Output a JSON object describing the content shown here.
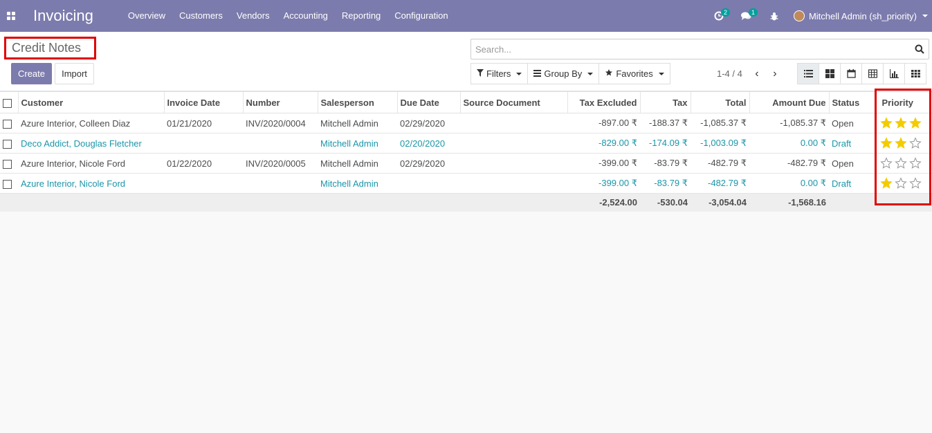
{
  "navbar": {
    "app_title": "Invoicing",
    "menu": [
      "Overview",
      "Customers",
      "Vendors",
      "Accounting",
      "Reporting",
      "Configuration"
    ],
    "activity_count": "2",
    "message_count": "1",
    "user_name": "Mitchell Admin (sh_priority)"
  },
  "control": {
    "page_title": "Credit Notes",
    "create_label": "Create",
    "import_label": "Import",
    "search_placeholder": "Search...",
    "filters_label": "Filters",
    "group_by_label": "Group By",
    "favorites_label": "Favorites",
    "pager": "1-4 / 4"
  },
  "table": {
    "columns": [
      "Customer",
      "Invoice Date",
      "Number",
      "Salesperson",
      "Due Date",
      "Source Document",
      "Tax Excluded",
      "Tax",
      "Total",
      "Amount Due",
      "Status",
      "Priority"
    ],
    "rows": [
      {
        "customer": "Azure Interior, Colleen Diaz",
        "invoice_date": "01/21/2020",
        "number": "INV/2020/0004",
        "salesperson": "Mitchell Admin",
        "due_date": "02/29/2020",
        "source": "",
        "tax_excluded": "-897.00 ₹",
        "tax": "-188.37 ₹",
        "total": "-1,085.37 ₹",
        "amount_due": "-1,085.37 ₹",
        "status": "Open",
        "priority": 3,
        "draft": false
      },
      {
        "customer": "Deco Addict, Douglas Fletcher",
        "invoice_date": "",
        "number": "",
        "salesperson": "Mitchell Admin",
        "due_date": "02/20/2020",
        "source": "",
        "tax_excluded": "-829.00 ₹",
        "tax": "-174.09 ₹",
        "total": "-1,003.09 ₹",
        "amount_due": "0.00 ₹",
        "status": "Draft",
        "priority": 2,
        "draft": true
      },
      {
        "customer": "Azure Interior, Nicole Ford",
        "invoice_date": "01/22/2020",
        "number": "INV/2020/0005",
        "salesperson": "Mitchell Admin",
        "due_date": "02/29/2020",
        "source": "",
        "tax_excluded": "-399.00 ₹",
        "tax": "-83.79 ₹",
        "total": "-482.79 ₹",
        "amount_due": "-482.79 ₹",
        "status": "Open",
        "priority": 0,
        "draft": false
      },
      {
        "customer": "Azure Interior, Nicole Ford",
        "invoice_date": "",
        "number": "",
        "salesperson": "Mitchell Admin",
        "due_date": "",
        "source": "",
        "tax_excluded": "-399.00 ₹",
        "tax": "-83.79 ₹",
        "total": "-482.79 ₹",
        "amount_due": "0.00 ₹",
        "status": "Draft",
        "priority": 1,
        "draft": true
      }
    ],
    "totals": {
      "tax_excluded": "-2,524.00",
      "tax": "-530.04",
      "total": "-3,054.04",
      "amount_due": "-1,568.16"
    }
  },
  "colors": {
    "navbar": "#7c7bad",
    "star_filled": "#f3cc00",
    "draft_text": "#1a96a8",
    "highlight": "#e00000"
  }
}
